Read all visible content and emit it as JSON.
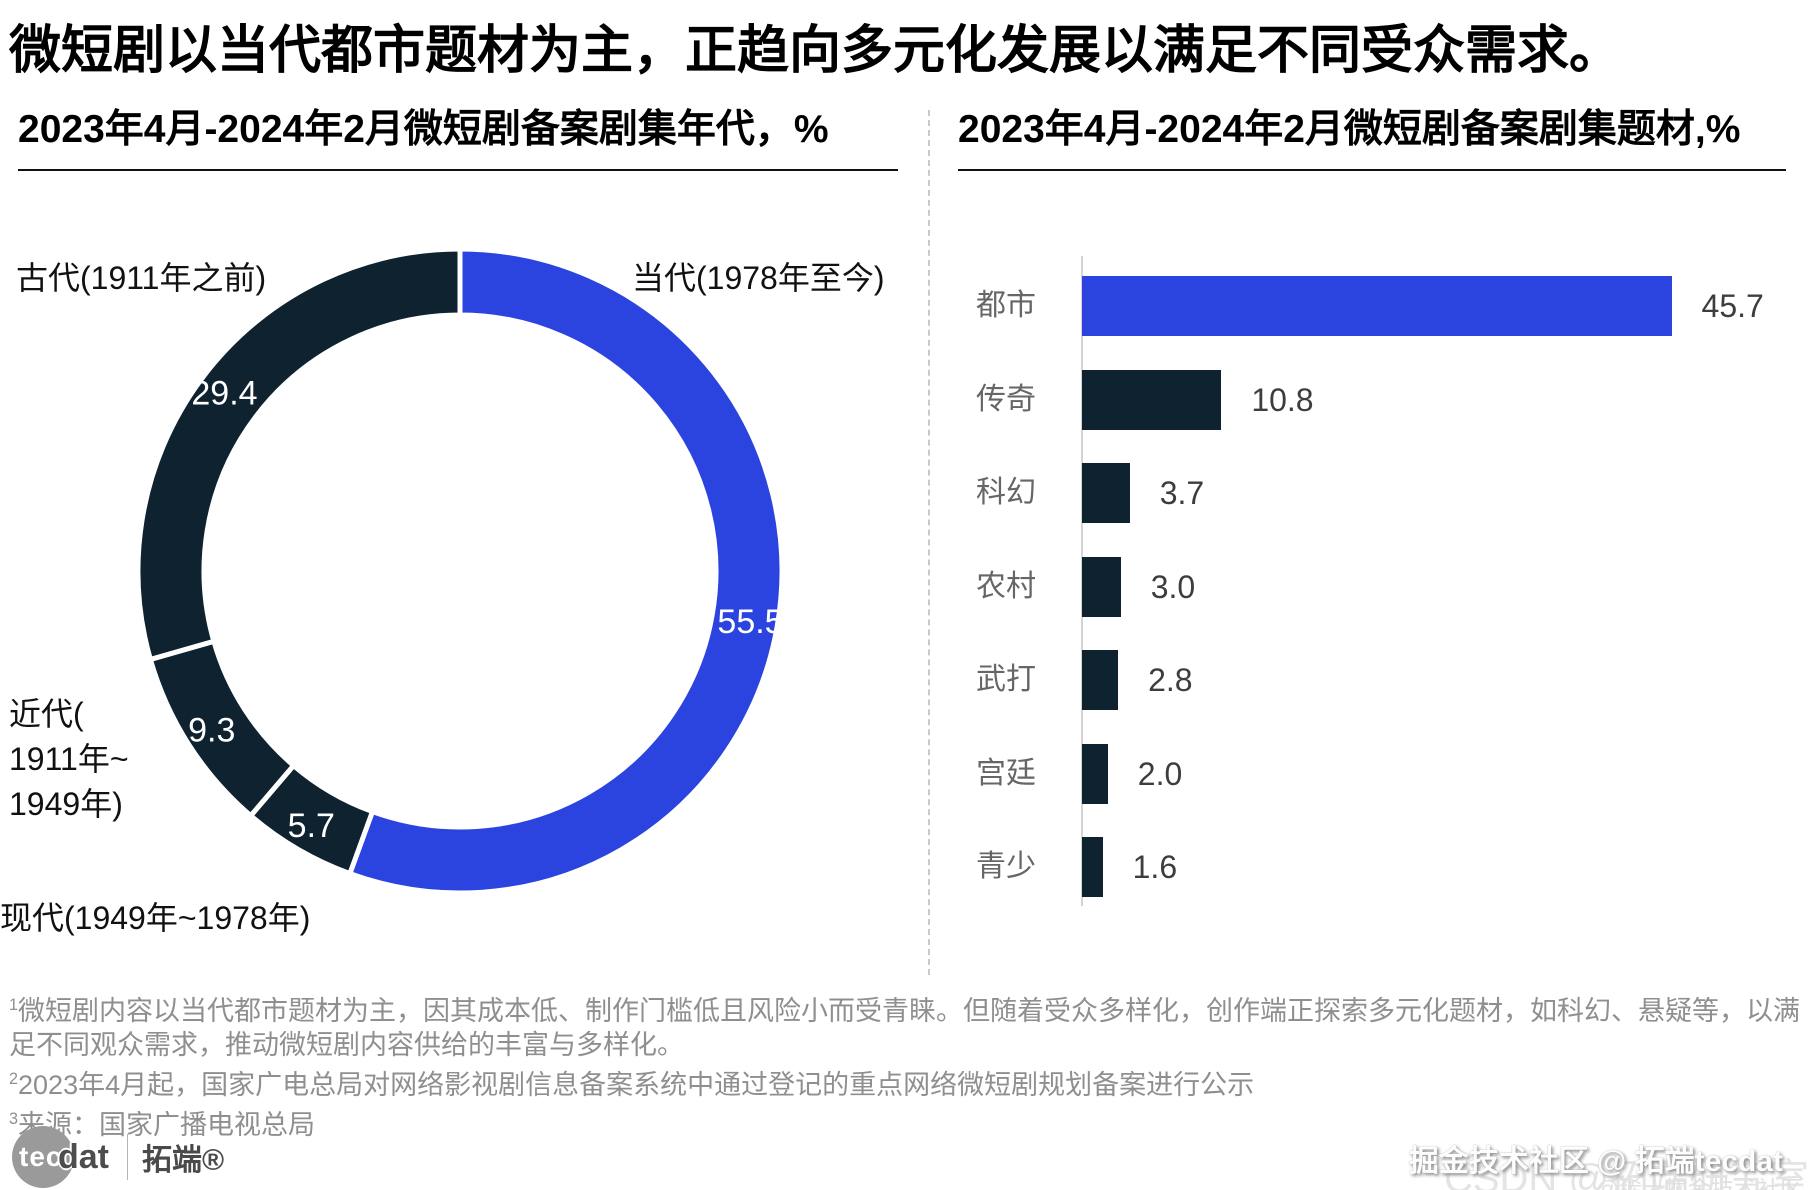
{
  "title": "微短剧以当代都市题材为主，正趋向多元化发展以满足不同受众需求。",
  "colors": {
    "accent_blue": "#2B44E0",
    "dark_navy": "#0E2230",
    "separator_white": "#ffffff"
  },
  "chart_data": [
    {
      "type": "pie",
      "subtype": "donut",
      "title": "2023年4月-2024年2月微短剧备案剧集年代，%",
      "unit": "%",
      "segments": [
        {
          "label": "当代(1978年至今)",
          "value": 55.5,
          "color": "#2B44E0"
        },
        {
          "label": "现代(1949年~1978年)",
          "value": 5.7,
          "color": "#0E2230"
        },
        {
          "label": "近代(1911年~1949年)",
          "value": 9.3,
          "color": "#0E2230"
        },
        {
          "label": "古代(1911年之前)",
          "value": 29.4,
          "color": "#0E2230"
        }
      ],
      "ext_labels": {
        "contemporary": "当代(1978年至今)",
        "ancient": "古代(1911年之前)",
        "early_modern_lines": [
          "近代(",
          "1911年~",
          "1949年)"
        ],
        "mid_modern": "现代(1949年~1978年)"
      }
    },
    {
      "type": "bar",
      "orientation": "horizontal",
      "title": "2023年4月-2024年2月微短剧备案剧集题材,%",
      "unit": "%",
      "categories": [
        "都市",
        "传奇",
        "科幻",
        "农村",
        "武打",
        "宫廷",
        "青少"
      ],
      "values": [
        45.7,
        10.8,
        3.7,
        3.0,
        2.8,
        2.0,
        1.6
      ],
      "bar_colors": [
        "#2B44E0",
        "#0E2230",
        "#0E2230",
        "#0E2230",
        "#0E2230",
        "#0E2230",
        "#0E2230"
      ],
      "xlim": [
        0,
        50
      ],
      "grid": false,
      "legend": "none"
    }
  ],
  "footnotes": [
    {
      "sup": "1",
      "text": "微短剧内容以当代都市题材为主，因其成本低、制作门槛低且风险小而受青睐。但随着受众多样化，创作端正探索多元化题材，如科幻、悬疑等，以满足不同观众需求，推动微短剧内容供给的丰富与多样化。"
    },
    {
      "sup": "2",
      "text": "2023年4月起，国家广电总局对网络影视剧信息备案系统中通过登记的重点网络微短剧规划备案进行公示"
    },
    {
      "sup": "3",
      "text": "来源：国家广播电视总局"
    }
  ],
  "branding": {
    "logo_circle_text": "tec",
    "logo_text": "dat",
    "logo_cn": "拓端®"
  },
  "watermarks": {
    "emboss": "掘金技术社区 @ 拓端tecdat",
    "light_large": "CSDN @拓端研究室",
    "light_small": "@稀土掘金技术社区"
  }
}
